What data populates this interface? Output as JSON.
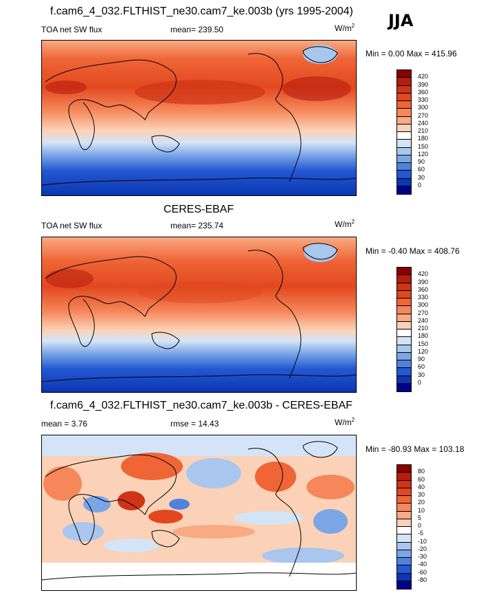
{
  "season": "JJA",
  "panel1": {
    "title": "f.cam6_4_032.FLTHIST_ne30.cam7_ke.003b (yrs 1995-2004)",
    "left_label": "TOA net SW flux",
    "stat_label": "mean= 239.50",
    "units_base": "W/m",
    "units_exp": "2",
    "minmax": "Min =   0.00 Max = 415.96"
  },
  "panel2": {
    "title": "CERES-EBAF",
    "left_label": "TOA net SW flux",
    "stat_label": "mean= 235.74",
    "units_base": "W/m",
    "units_exp": "2",
    "minmax": "Min =  -0.40 Max = 408.76"
  },
  "panel3": {
    "title": "f.cam6_4_032.FLTHIST_ne30.cam7_ke.003b - CERES-EBAF",
    "left_label": "mean =   3.76",
    "stat_label": "rmse =  14.43",
    "units_base": "W/m",
    "units_exp": "2",
    "minmax": "Min = -80.93 Max = 103.18"
  },
  "colorbar_abs": {
    "ticks": [
      "420",
      "390",
      "360",
      "330",
      "300",
      "270",
      "240",
      "210",
      "180",
      "150",
      "120",
      "90",
      "60",
      "30",
      "0"
    ],
    "colors": [
      "#8b0000",
      "#b51d0d",
      "#cf3416",
      "#e2481f",
      "#ef6536",
      "#f6875a",
      "#f9aa83",
      "#fbd2b7",
      "#ffffff",
      "#d4e4f7",
      "#a8c6ee",
      "#7ba6e6",
      "#4f82dd",
      "#2458d2",
      "#0b37b3",
      "#00008b"
    ]
  },
  "colorbar_diff": {
    "ticks": [
      "80",
      "60",
      "40",
      "30",
      "20",
      "10",
      "5",
      "0",
      "-5",
      "-10",
      "-20",
      "-30",
      "-40",
      "-60",
      "-80"
    ],
    "colors": [
      "#8b0000",
      "#b51d0d",
      "#cf3416",
      "#e2481f",
      "#ef6536",
      "#f6875a",
      "#f9aa83",
      "#fbd2b7",
      "#ffffff",
      "#d4e4f7",
      "#a8c6ee",
      "#7ba6e6",
      "#4f82dd",
      "#2458d2",
      "#0b37b3",
      "#00008b"
    ]
  }
}
